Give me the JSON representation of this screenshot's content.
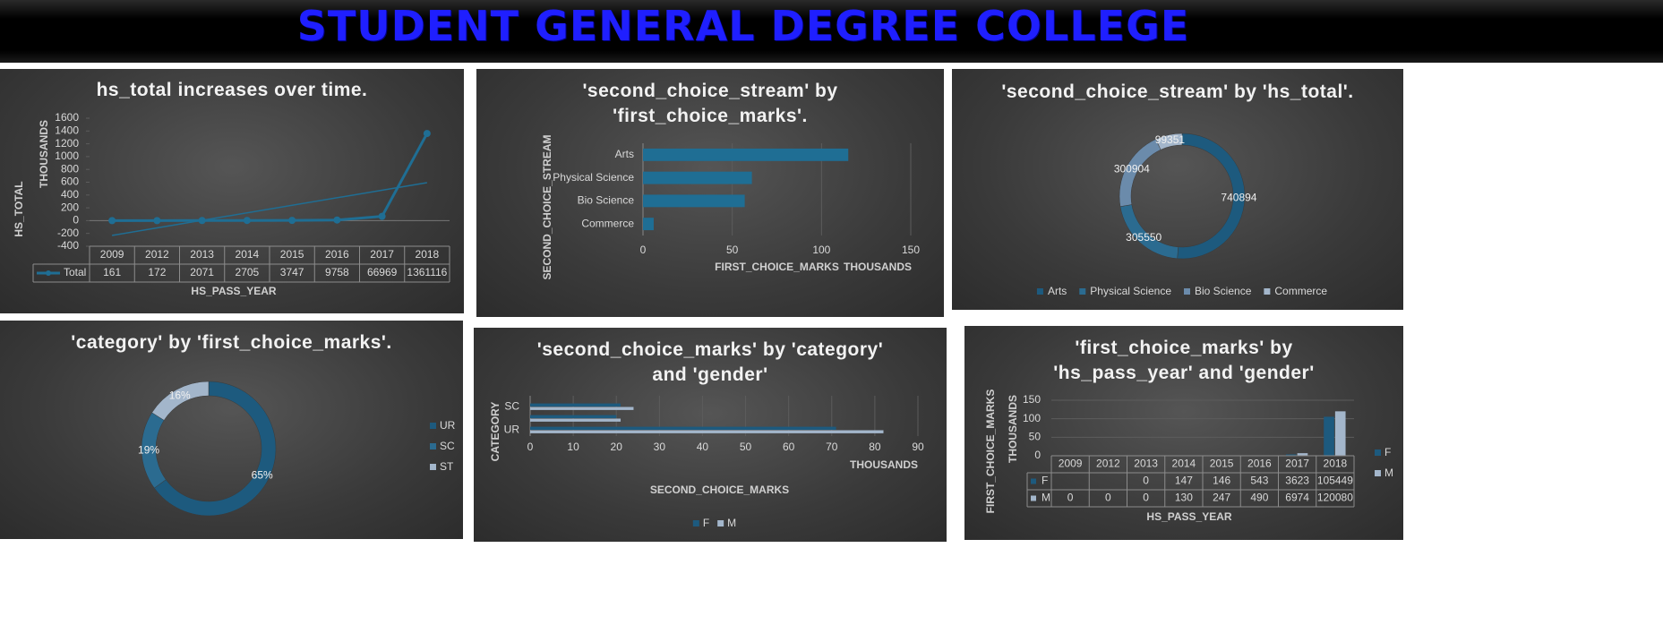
{
  "header": {
    "title": "STUDENT GENERAL DEGREE COLLEGE"
  },
  "chart_data": [
    {
      "type": "line",
      "title": "hs_total increases over time.",
      "y_label": "HS_TOTAL",
      "y_unit_label": "THOUSANDS",
      "x_label": "HS_PASS_YEAR",
      "categories": [
        "2009",
        "2012",
        "2013",
        "2014",
        "2015",
        "2016",
        "2017",
        "2018"
      ],
      "series": [
        {
          "name": "Total",
          "color": "#1f6e94",
          "values": [
            161,
            172,
            2071,
            2705,
            3747,
            9758,
            66969,
            1361116
          ]
        }
      ],
      "ylim": [
        -400000,
        1600000
      ],
      "yticks": [
        {
          "value": -400000,
          "label": "-400"
        },
        {
          "value": -200000,
          "label": "-200"
        },
        0,
        {
          "value": 200000,
          "label": "200"
        },
        {
          "value": 400000,
          "label": "400"
        },
        {
          "value": 600000,
          "label": "600"
        },
        {
          "value": 800000,
          "label": "800"
        },
        {
          "value": 1000000,
          "label": "1000"
        },
        {
          "value": 1200000,
          "label": "1200"
        },
        {
          "value": 1400000,
          "label": "1400"
        },
        {
          "value": 1600000,
          "label": "1600"
        }
      ],
      "grid": false,
      "trendline": true,
      "data_table": true
    },
    {
      "type": "bar",
      "title": "'second_choice_stream' by 'first_choice_marks'.",
      "y_label": "SECOND_CHOICE_STREAM",
      "x_label": "FIRST_CHOICE_MARKS",
      "x_unit_label": "THOUSANDS",
      "categories": [
        "Arts",
        "Physical Science",
        "Bio Science",
        "Commerce"
      ],
      "values": [
        115,
        61,
        57,
        6
      ],
      "color": "#1f6e94",
      "xlim": [
        0,
        150
      ],
      "xticks": [
        0,
        50,
        100,
        150
      ],
      "grid": true
    },
    {
      "type": "donut",
      "title": "'second_choice_stream' by 'hs_total'.",
      "categories": [
        "Arts",
        "Physical Science",
        "Bio Science",
        "Commerce"
      ],
      "values": [
        740894,
        305550,
        300904,
        99351
      ],
      "colors": [
        "#1d5a7e",
        "#2b6b90",
        "#6b8bab",
        "#a3b6cb"
      ],
      "legend": "bottom"
    },
    {
      "type": "donut",
      "title": "'category' by 'first_choice_marks'.",
      "categories": [
        "UR",
        "SC",
        "ST"
      ],
      "values": [
        65,
        19,
        16
      ],
      "value_labels": [
        "65%",
        "19%",
        "16%"
      ],
      "colors": [
        "#1d5a7e",
        "#2b6b90",
        "#a3b6cb"
      ],
      "legend": "right"
    },
    {
      "type": "grouped_bar",
      "title": "'second_choice_marks' by 'category' and 'gender'",
      "y_label": "CATEGORY",
      "x_label": "SECOND_CHOICE_MARKS",
      "x_unit_label": "THOUSANDS",
      "categories": [
        "UR",
        null,
        "SC"
      ],
      "series": [
        {
          "name": "F",
          "color": "#1d5a7e",
          "values": [
            71,
            20,
            21
          ]
        },
        {
          "name": "M",
          "color": "#a3b6cb",
          "values": [
            82,
            21,
            24
          ]
        }
      ],
      "xlim": [
        0,
        90
      ],
      "xticks": [
        0,
        10,
        20,
        30,
        40,
        50,
        60,
        70,
        80,
        90
      ],
      "grid": true,
      "legend": "bottom"
    },
    {
      "type": "column",
      "title": "'first_choice_marks' by 'hs_pass_year' and 'gender'",
      "y_label": "FIRST_CHOICE_MARKS",
      "y_unit_label": "THOUSANDS",
      "x_label": "HS_PASS_YEAR",
      "categories": [
        "2009",
        "2012",
        "2013",
        "2014",
        "2015",
        "2016",
        "2017",
        "2018"
      ],
      "series": [
        {
          "name": "F",
          "color": "#1d5a7e",
          "values": [
            null,
            null,
            0,
            147,
            146,
            543,
            3623,
            105449
          ]
        },
        {
          "name": "M",
          "color": "#a3b6cb",
          "values": [
            0,
            0,
            0,
            130,
            247,
            490,
            6974,
            120080
          ]
        }
      ],
      "ylim": [
        0,
        150000
      ],
      "yticks": [
        0,
        {
          "value": 50000,
          "label": "50"
        },
        {
          "value": 100000,
          "label": "100"
        },
        {
          "value": 150000,
          "label": "150"
        }
      ],
      "grid": true,
      "data_table": true,
      "legend": "right"
    }
  ]
}
